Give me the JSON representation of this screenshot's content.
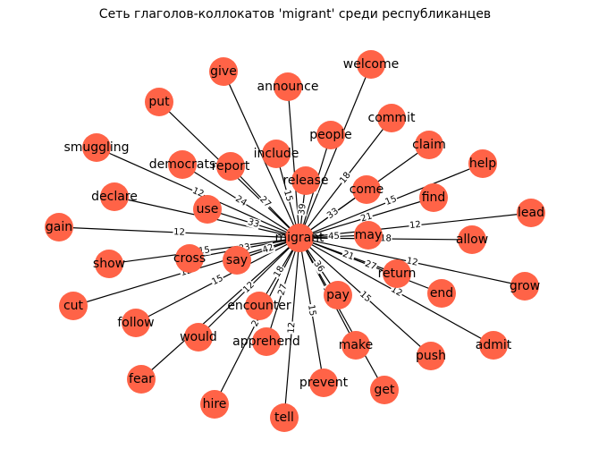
{
  "title": "Сеть глаголов-коллокатов 'migrant' среди республиканцев",
  "center": "migrant",
  "nodes": [
    {
      "id": "migrant"
    },
    {
      "id": "give"
    },
    {
      "id": "announce"
    },
    {
      "id": "welcome"
    },
    {
      "id": "put"
    },
    {
      "id": "commit"
    },
    {
      "id": "people"
    },
    {
      "id": "include"
    },
    {
      "id": "report"
    },
    {
      "id": "claim"
    },
    {
      "id": "smuggling"
    },
    {
      "id": "democrats"
    },
    {
      "id": "release"
    },
    {
      "id": "help"
    },
    {
      "id": "come"
    },
    {
      "id": "declare"
    },
    {
      "id": "find"
    },
    {
      "id": "use"
    },
    {
      "id": "lead"
    },
    {
      "id": "gain"
    },
    {
      "id": "may"
    },
    {
      "id": "allow"
    },
    {
      "id": "show"
    },
    {
      "id": "cross"
    },
    {
      "id": "say"
    },
    {
      "id": "return"
    },
    {
      "id": "grow"
    },
    {
      "id": "end"
    },
    {
      "id": "cut"
    },
    {
      "id": "pay"
    },
    {
      "id": "follow"
    },
    {
      "id": "encounter"
    },
    {
      "id": "admit"
    },
    {
      "id": "would"
    },
    {
      "id": "apprehend"
    },
    {
      "id": "make"
    },
    {
      "id": "push"
    },
    {
      "id": "fear"
    },
    {
      "id": "prevent"
    },
    {
      "id": "get"
    },
    {
      "id": "hire"
    },
    {
      "id": "tell"
    }
  ],
  "edges": [
    {
      "target": "give",
      "weight": ""
    },
    {
      "target": "announce",
      "weight": ""
    },
    {
      "target": "welcome",
      "weight": ""
    },
    {
      "target": "put",
      "weight": ""
    },
    {
      "target": "commit",
      "weight": "18"
    },
    {
      "target": "people",
      "weight": "12"
    },
    {
      "target": "include",
      "weight": "15"
    },
    {
      "target": "report",
      "weight": "27"
    },
    {
      "target": "claim",
      "weight": ""
    },
    {
      "target": "smuggling",
      "weight": "12"
    },
    {
      "target": "democrats",
      "weight": "24"
    },
    {
      "target": "release",
      "weight": "39"
    },
    {
      "target": "help",
      "weight": "15"
    },
    {
      "target": "come",
      "weight": "33"
    },
    {
      "target": "declare",
      "weight": ""
    },
    {
      "target": "find",
      "weight": "21"
    },
    {
      "target": "use",
      "weight": "33"
    },
    {
      "target": "lead",
      "weight": "12"
    },
    {
      "target": "gain",
      "weight": "12"
    },
    {
      "target": "may",
      "weight": "45"
    },
    {
      "target": "allow",
      "weight": "18"
    },
    {
      "target": "show",
      "weight": "15"
    },
    {
      "target": "cross",
      "weight": "33"
    },
    {
      "target": "say",
      "weight": "42"
    },
    {
      "target": "return",
      "weight": "21"
    },
    {
      "target": "grow",
      "weight": "12"
    },
    {
      "target": "end",
      "weight": "27"
    },
    {
      "target": "cut",
      "weight": "12"
    },
    {
      "target": "pay",
      "weight": "36"
    },
    {
      "target": "follow",
      "weight": "15"
    },
    {
      "target": "encounter",
      "weight": "18"
    },
    {
      "target": "admit",
      "weight": "12"
    },
    {
      "target": "would",
      "weight": "12"
    },
    {
      "target": "apprehend",
      "weight": "27"
    },
    {
      "target": "make",
      "weight": "15"
    },
    {
      "target": "push",
      "weight": "15"
    },
    {
      "target": "fear",
      "weight": ""
    },
    {
      "target": "prevent",
      "weight": "15"
    },
    {
      "target": "get",
      "weight": ""
    },
    {
      "target": "hire",
      "weight": "24"
    },
    {
      "target": "tell",
      "weight": "12"
    }
  ],
  "node_color": "#FF6347",
  "edge_color": "#000000"
}
